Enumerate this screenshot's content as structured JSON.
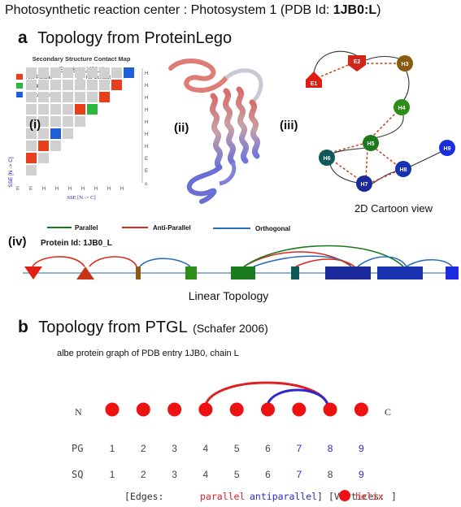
{
  "figure_title_prefix": "Photosynthetic reaction center : Photosystem 1 (PDB Id: ",
  "figure_title_id": "1JB0:L",
  "figure_title_suffix": ")",
  "section_a": {
    "letter": "a",
    "title": "Topology from ProteinLego",
    "contact_map": {
      "title": "Secondary Structure Contact Map",
      "protein_id": "[Protein Id: 1JB0:L]",
      "legend": [
        {
          "label": "Anti-Parallel",
          "color": "#e8401c"
        },
        {
          "label": "No Contact",
          "color": "#d0d0d0"
        },
        {
          "label": "Parallel",
          "color": "#2db83d"
        },
        {
          "label": "Orthogonal",
          "color": "#1f5fd8"
        }
      ],
      "x_label": "SSE [N -> C]",
      "y_label": "SSE [N -> C]",
      "sse_types": [
        "E",
        "E",
        "H",
        "H",
        "H",
        "H",
        "H",
        "H",
        "H"
      ],
      "row_labels": [
        "H",
        "H",
        "H",
        "H",
        "H",
        "H",
        "H",
        "E",
        "E"
      ],
      "contacts": [
        {
          "row": 0,
          "col": 8,
          "type": "orthogonal"
        },
        {
          "row": 1,
          "col": 7,
          "type": "anti-parallel"
        },
        {
          "row": 2,
          "col": 6,
          "type": "anti-parallel"
        },
        {
          "row": 3,
          "col": 5,
          "type": "parallel"
        },
        {
          "row": 3,
          "col": 4,
          "type": "anti-parallel"
        },
        {
          "row": 5,
          "col": 2,
          "type": "orthogonal"
        },
        {
          "row": 6,
          "col": 1,
          "type": "anti-parallel"
        },
        {
          "row": 7,
          "col": 0,
          "type": "anti-parallel"
        }
      ]
    },
    "panels": {
      "i": "(i)",
      "ii": "(ii)",
      "iii": "(iii)",
      "iv": "(iv)"
    },
    "cartoon": {
      "caption": "2D Cartoon view",
      "nodes": [
        "E1",
        "E2",
        "H3",
        "H4",
        "H5",
        "H6",
        "H7",
        "H8",
        "H9"
      ]
    },
    "linear": {
      "legend": [
        {
          "label": "Parallel",
          "color": "#1a7a1a"
        },
        {
          "label": "Anti-Parallel",
          "color": "#d92a1c"
        },
        {
          "label": "Orthogonal",
          "color": "#2a6fb8"
        }
      ],
      "protein_id": "Protein Id: 1JB0_L",
      "caption": "Linear Topology"
    }
  },
  "section_b": {
    "letter": "b",
    "title": "Topology from PTGL",
    "citation": "(Schafer 2006)",
    "graph_title": "albe protein graph of PDB entry 1JB0, chain L",
    "n_label": "N",
    "c_label": "C",
    "pg_label": "PG",
    "sq_label": "SQ",
    "pg_numbers": [
      "1",
      "2",
      "3",
      "4",
      "5",
      "6",
      "7",
      "8",
      "9"
    ],
    "sq_numbers": [
      "1",
      "2",
      "3",
      "4",
      "5",
      "6",
      "7",
      "8",
      "9"
    ],
    "legend": {
      "edges_open": "[Edges:",
      "parallel": "parallel",
      "antiparallel": "antiparallel",
      "edges_close": "]",
      "vertices_open": "[Vertices:",
      "helix": "helix",
      "vertices_close": "]"
    },
    "colors": {
      "vertex": "#ee1111",
      "parallel": "#e02020",
      "antiparallel": "#2a2ad0"
    }
  }
}
